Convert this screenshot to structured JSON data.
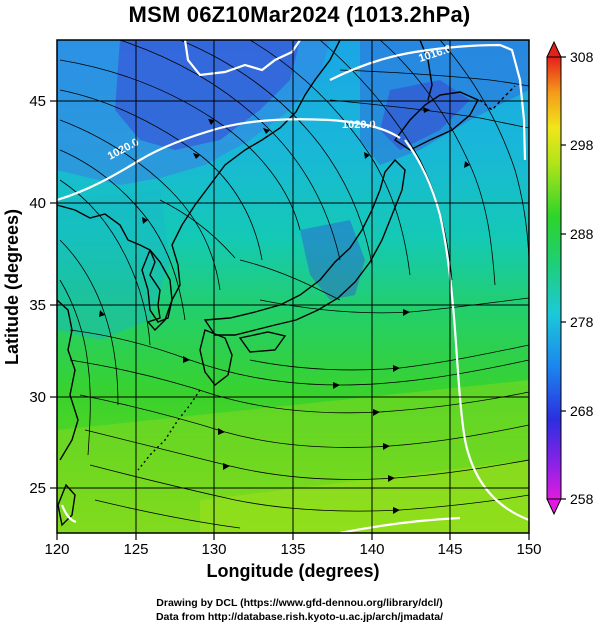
{
  "title": "MSM 06Z10Mar2024 (1013.2hPa)",
  "x_axis": {
    "label": "Longitude (degrees)",
    "ticks": [
      120,
      125,
      130,
      135,
      140,
      145,
      150
    ]
  },
  "y_axis": {
    "label": "Latitude  (degrees)",
    "ticks": [
      25,
      30,
      35,
      40,
      45
    ]
  },
  "colorbar": {
    "ticks": [
      308,
      298,
      288,
      278,
      268,
      258
    ],
    "min": 258,
    "max": 308
  },
  "contour_labels": [
    "1020.0",
    "1020.0",
    "1016.0"
  ],
  "footer": {
    "line1": "Drawing by DCL (https://www.gfd-dennou.org/library/dcl/)",
    "line2": "Data from http://database.rish.kyoto-u.ac.jp/arch/jmadata/"
  },
  "colors": {
    "cold": "#2f4fd8",
    "cool": "#1fc9c0",
    "mild": "#2fcf3a",
    "warm": "#7fdc1c",
    "hot": "#d24a10"
  }
}
